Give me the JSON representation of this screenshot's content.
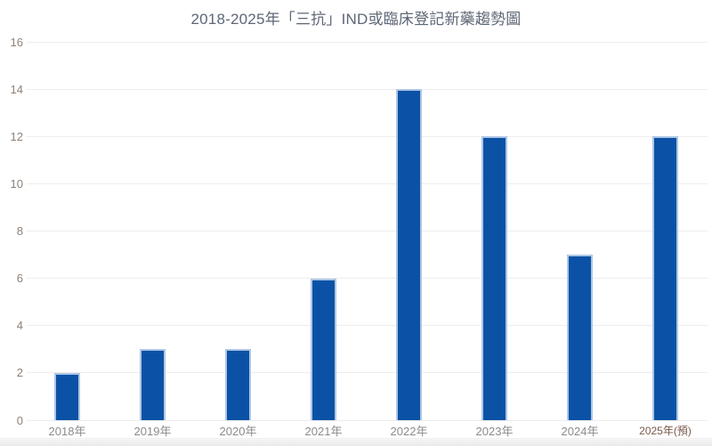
{
  "chart_data": {
    "type": "bar",
    "title": "2018-2025年「三抗」IND或臨床登記新藥趨勢圖",
    "categories": [
      "2018年",
      "2019年",
      "2020年",
      "2021年",
      "2022年",
      "2023年",
      "2024年",
      "2025年(預)"
    ],
    "values": [
      2,
      3,
      3,
      6,
      14,
      12,
      7,
      12
    ],
    "xlabel": "",
    "ylabel": "",
    "ylim": [
      0,
      16
    ],
    "y_ticks": [
      0,
      2,
      4,
      6,
      8,
      10,
      12,
      14,
      16
    ],
    "grid": "horizontal",
    "legend": "none",
    "highlight_last_category": true
  },
  "colors": {
    "bar_fill": "#0b52a6",
    "bar_border": "#aec6e4",
    "gridline": "#ededed",
    "title_text": "#5d6776",
    "y_tick_text": "#8d8076",
    "x_tick_text": "#8b8b8b",
    "x_tick_pred_text": "#7a584a",
    "background": "#ffffff"
  }
}
